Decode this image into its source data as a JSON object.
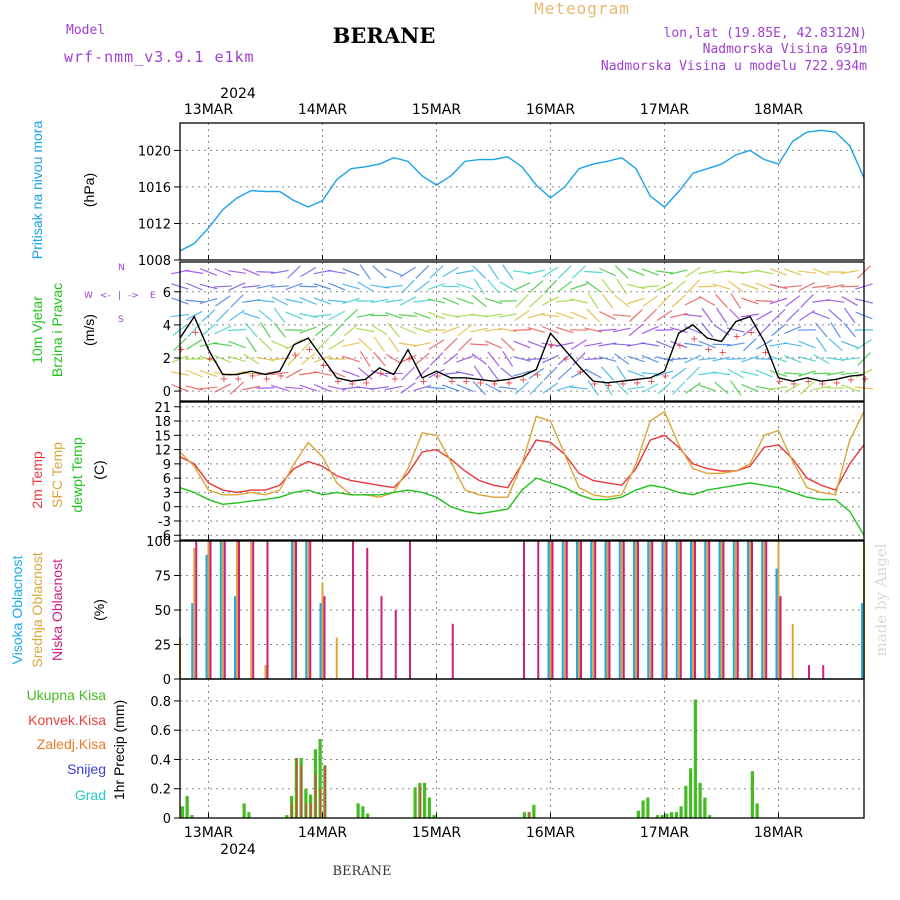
{
  "header": {
    "model_label": "Model",
    "model_name": "wrf-nmm_v3.9.1  e1km",
    "title": "BERANE",
    "meteogram_label": "Meteogram",
    "lonlat": "lon,lat (19.85E, 42.8312N)",
    "station_altitude": "Nadmorska Visina 691m",
    "model_altitude": "Nadmorska Visina u modelu 722.934m",
    "footer_station": "BERANE",
    "credit": "made by Angel"
  },
  "colors": {
    "pressure": "#1aa3e8",
    "temp2m": "#e8383a",
    "sfc_temp": "#dba53a",
    "dewpoint": "#22c21e",
    "high_cloud": "#1ca9ee",
    "mid_cloud": "#dba53a",
    "low_cloud": "#cc1f7e",
    "total_precip": "#44bb22",
    "conv_precip": "#e84040",
    "frz_precip": "#e87a2a",
    "snow": "#3a3ad8",
    "graupel": "#22c8c8",
    "purple_text": "#a040d0",
    "meteogram_text": "#e8b870"
  },
  "chart_data": [
    {
      "type": "line",
      "id": "pressure",
      "ylabel": "Pritisak na nivou mora",
      "unit": "(hPa)",
      "ylim": [
        1008,
        1023
      ],
      "yticks": [
        1008,
        1012,
        1016,
        1020
      ],
      "x_hours": [
        0,
        3,
        6,
        9,
        12,
        15,
        18,
        21,
        24,
        27,
        30,
        33,
        36,
        39,
        42,
        45,
        48,
        51,
        54,
        57,
        60,
        63,
        66,
        69,
        72,
        75,
        78,
        81,
        84,
        87,
        90,
        93,
        96,
        99,
        102,
        105,
        108,
        111,
        114,
        117,
        120,
        123,
        126,
        129,
        132,
        135,
        138,
        141,
        144
      ],
      "series": [
        {
          "values": [
            1009.0,
            1009.8,
            1011.5,
            1013.5,
            1014.8,
            1015.6,
            1015.5,
            1015.5,
            1014.5,
            1013.8,
            1014.5,
            1016.8,
            1018.0,
            1018.2,
            1018.5,
            1019.2,
            1018.8,
            1017.2,
            1016.2,
            1017.2,
            1018.8,
            1019.0,
            1019.0,
            1019.3,
            1018.2,
            1016.2,
            1014.8,
            1016.0,
            1018.0,
            1018.5,
            1018.8,
            1019.2,
            1018.0,
            1015.0,
            1013.8,
            1015.5,
            1017.5,
            1018.0,
            1018.5,
            1019.5,
            1020.0,
            1019.0,
            1018.5,
            1021.0,
            1022.0,
            1022.2,
            1022.0,
            1020.5,
            1017.0
          ]
        }
      ]
    },
    {
      "type": "line",
      "id": "wind",
      "ylabel": "10m Vjetar",
      "ylabel2": "Brzina i Pravac",
      "unit": "(m/s)",
      "ylim": [
        -0.6,
        7.8
      ],
      "yticks": [
        0,
        2,
        4,
        6
      ],
      "compass_labels": [
        "W",
        "<-",
        "|",
        "->",
        "E",
        "S",
        "N"
      ],
      "x_hours": [
        0,
        3,
        6,
        9,
        12,
        15,
        18,
        21,
        24,
        27,
        30,
        33,
        36,
        39,
        42,
        45,
        48,
        51,
        54,
        57,
        60,
        63,
        66,
        69,
        72,
        75,
        78,
        81,
        84,
        87,
        90,
        93,
        96,
        99,
        102,
        105,
        108,
        111,
        114,
        117,
        120,
        123,
        126,
        129,
        132,
        135,
        138,
        141,
        144
      ],
      "series": [
        {
          "name": "speed",
          "values": [
            3.2,
            4.5,
            2.5,
            1.0,
            1.0,
            1.2,
            1.0,
            1.2,
            2.8,
            3.2,
            2.0,
            0.8,
            0.6,
            0.7,
            1.4,
            1.0,
            2.5,
            0.8,
            1.2,
            0.8,
            0.8,
            0.7,
            0.6,
            0.7,
            0.9,
            1.3,
            3.5,
            2.5,
            1.5,
            0.6,
            0.5,
            0.6,
            0.7,
            0.8,
            1.2,
            3.5,
            4.0,
            3.2,
            3.0,
            4.2,
            4.5,
            3.0,
            0.8,
            0.6,
            0.8,
            0.6,
            0.7,
            0.9,
            1.0
          ]
        }
      ]
    },
    {
      "type": "line",
      "id": "temperature",
      "ylabel": "2m Temp",
      "ylabel2": "SFC Temp",
      "ylabel3": "dewpt Temp",
      "unit": "(C)",
      "ylim": [
        -7,
        22
      ],
      "yticks": [
        -6,
        -3,
        0,
        3,
        6,
        9,
        12,
        15,
        18,
        21
      ],
      "x_hours": [
        0,
        3,
        6,
        9,
        12,
        15,
        18,
        21,
        24,
        27,
        30,
        33,
        36,
        39,
        42,
        45,
        48,
        51,
        54,
        57,
        60,
        63,
        66,
        69,
        72,
        75,
        78,
        81,
        84,
        87,
        90,
        93,
        96,
        99,
        102,
        105,
        108,
        111,
        114,
        117,
        120,
        123,
        126,
        129,
        132,
        135,
        138,
        141,
        144
      ],
      "series": [
        {
          "name": "2m Temp",
          "values": [
            10.5,
            9.0,
            5.0,
            3.5,
            3.0,
            3.5,
            3.5,
            4.5,
            8.0,
            9.5,
            8.5,
            6.5,
            5.5,
            5.0,
            4.5,
            4.0,
            7.0,
            11.5,
            12.0,
            10.0,
            7.5,
            5.5,
            4.5,
            4.0,
            9.0,
            14.0,
            13.5,
            11.0,
            7.0,
            5.5,
            5.0,
            4.5,
            8.0,
            14.0,
            15.0,
            12.5,
            9.0,
            8.0,
            7.5,
            7.5,
            8.5,
            12.5,
            13.0,
            10.0,
            6.0,
            4.5,
            3.5,
            9.0,
            13.0
          ]
        },
        {
          "name": "SFC Temp",
          "values": [
            11.5,
            8.5,
            3.5,
            2.5,
            2.5,
            3.0,
            2.5,
            3.5,
            9.0,
            13.5,
            10.5,
            5.0,
            2.5,
            2.5,
            2.0,
            3.0,
            8.0,
            15.5,
            15.0,
            9.5,
            3.5,
            2.5,
            2.0,
            2.0,
            9.0,
            19.0,
            18.0,
            11.0,
            4.0,
            2.5,
            2.0,
            2.5,
            9.0,
            18.0,
            20.0,
            13.0,
            8.0,
            7.0,
            7.0,
            7.5,
            9.0,
            15.0,
            16.0,
            9.5,
            4.0,
            3.0,
            2.5,
            14.0,
            20.0
          ]
        },
        {
          "name": "dewpt Temp",
          "values": [
            4.0,
            3.0,
            1.5,
            0.5,
            0.8,
            1.2,
            1.5,
            2.0,
            3.0,
            3.5,
            2.5,
            3.0,
            2.5,
            2.5,
            2.5,
            3.0,
            3.5,
            3.0,
            2.0,
            0.0,
            -1.0,
            -1.5,
            -1.0,
            -0.5,
            3.5,
            6.0,
            5.0,
            4.0,
            2.5,
            1.5,
            1.5,
            2.0,
            3.5,
            4.5,
            4.0,
            3.0,
            2.5,
            3.5,
            4.0,
            4.5,
            5.0,
            4.5,
            4.0,
            3.0,
            2.0,
            1.5,
            1.5,
            -1.0,
            -6.0
          ]
        }
      ]
    },
    {
      "type": "bar",
      "id": "cloud",
      "ylabel": "Visoka Oblacnost",
      "ylabel2": "Srednja Oblacnost",
      "ylabel3": "Niska Oblacnost",
      "unit": "(%)",
      "ylim": [
        0,
        100
      ],
      "yticks": [
        0,
        25,
        50,
        75,
        100
      ],
      "x_hours": [
        0,
        3,
        6,
        9,
        12,
        15,
        18,
        21,
        24,
        27,
        30,
        33,
        36,
        39,
        42,
        45,
        48,
        51,
        54,
        57,
        60,
        63,
        66,
        69,
        72,
        75,
        78,
        81,
        84,
        87,
        90,
        93,
        96,
        99,
        102,
        105,
        108,
        111,
        114,
        117,
        120,
        123,
        126,
        129,
        132,
        135,
        138,
        141,
        144
      ],
      "series": [
        {
          "name": "Visoka Oblacnost",
          "values": [
            0,
            55,
            90,
            100,
            60,
            0,
            0,
            0,
            100,
            100,
            55,
            0,
            0,
            0,
            0,
            0,
            0,
            0,
            0,
            0,
            0,
            0,
            0,
            0,
            0,
            0,
            100,
            100,
            100,
            100,
            100,
            100,
            100,
            100,
            100,
            100,
            100,
            100,
            100,
            100,
            100,
            100,
            80,
            0,
            0,
            0,
            0,
            0,
            55
          ]
        },
        {
          "name": "Srednja Oblacnost",
          "values": [
            30,
            95,
            100,
            100,
            100,
            100,
            10,
            0,
            100,
            100,
            70,
            30,
            0,
            0,
            0,
            0,
            0,
            0,
            0,
            0,
            0,
            0,
            0,
            0,
            0,
            0,
            100,
            100,
            100,
            100,
            100,
            100,
            100,
            100,
            100,
            100,
            100,
            100,
            100,
            100,
            100,
            100,
            100,
            40,
            0,
            0,
            0,
            0,
            100
          ]
        },
        {
          "name": "Niska Oblacnost",
          "values": [
            0,
            100,
            100,
            100,
            100,
            100,
            100,
            0,
            100,
            100,
            60,
            0,
            100,
            95,
            60,
            50,
            100,
            0,
            0,
            40,
            0,
            0,
            0,
            0,
            100,
            100,
            100,
            100,
            100,
            100,
            100,
            100,
            100,
            100,
            100,
            100,
            100,
            100,
            100,
            100,
            100,
            100,
            60,
            0,
            10,
            10,
            0,
            0,
            0
          ]
        }
      ]
    },
    {
      "type": "bar",
      "id": "precip",
      "unit": "1hr Precip (mm)",
      "legend": [
        "Ukupna  Kisa",
        "Konvek.Kisa",
        "Zaledj.Kisa",
        "Snijeg",
        "Grad"
      ],
      "ylim": [
        0,
        0.95
      ],
      "yticks": [
        0,
        0.2,
        0.4,
        0.6,
        0.8
      ],
      "ytick_labels": [
        "0",
        "0.2",
        "0.4",
        "0.6",
        "0.8"
      ],
      "x_hours": [
        0.5,
        1.5,
        2.5,
        13.5,
        14.5,
        22.5,
        23.5,
        24.5,
        25.5,
        26.5,
        27.5,
        28.5,
        29.5,
        30.5,
        37.5,
        38.5,
        39.5,
        49.5,
        50.5,
        51.5,
        52.5,
        53.5,
        72.5,
        73.5,
        74.5,
        96.5,
        97.5,
        98.5,
        100.5,
        101.5,
        102.5,
        103.5,
        104.5,
        105.5,
        106.5,
        107.5,
        108.5,
        109.5,
        110.5,
        111.5,
        112.5,
        113.5,
        120.5,
        121.5
      ],
      "series": [
        {
          "name": "Ukupna  Kisa",
          "values": [
            0.08,
            0.15,
            0.02,
            0.1,
            0.04,
            0.02,
            0.15,
            0.41,
            0.41,
            0.2,
            0.16,
            0.47,
            0.54,
            0.36,
            0.1,
            0.08,
            0.03,
            0.21,
            0.24,
            0.24,
            0.14,
            0.02,
            0.04,
            0.04,
            0.09,
            0.05,
            0.12,
            0.14,
            0.02,
            0.02,
            0.03,
            0.04,
            0.04,
            0.08,
            0.22,
            0.34,
            0.81,
            0.24,
            0.14,
            0.02,
            0.0,
            0.0,
            0.32,
            0.1
          ]
        },
        {
          "name": "Konvek.Kisa",
          "values": [
            0,
            0,
            0,
            0,
            0,
            0,
            0.1,
            0.41,
            0.36,
            0.1,
            0.1,
            0.3,
            0.2,
            0.36,
            0,
            0,
            0,
            0,
            0.22,
            0,
            0,
            0,
            0,
            0.04,
            0,
            0,
            0,
            0,
            0,
            0,
            0,
            0,
            0,
            0,
            0,
            0,
            0,
            0,
            0,
            0,
            0,
            0,
            0,
            0
          ]
        }
      ]
    }
  ],
  "x_axis": {
    "year": "2024",
    "date_labels": [
      "13MAR",
      "14MAR",
      "15MAR",
      "16MAR",
      "17MAR",
      "18MAR"
    ],
    "date_hours": [
      6,
      30,
      54,
      78,
      102,
      126
    ]
  }
}
